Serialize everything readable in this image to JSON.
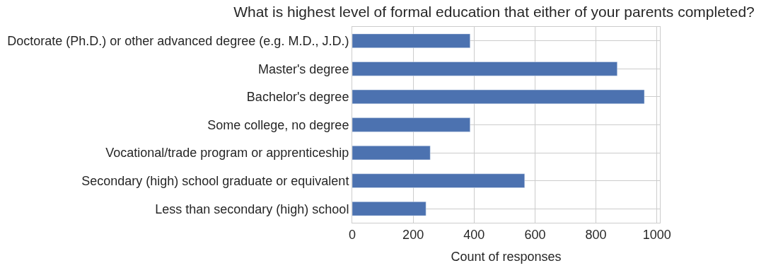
{
  "chart_data": {
    "type": "bar",
    "orientation": "horizontal",
    "title": "What is highest level of formal education that either of your parents completed?",
    "xlabel": "Count of responses",
    "categories": [
      "Doctorate (Ph.D.) or other advanced degree (e.g. M.D., J.D.)",
      "Master's degree",
      "Bachelor's degree",
      "Some college, no degree",
      "Vocational/trade program or apprenticeship",
      "Secondary (high) school graduate or equivalent",
      "Less than secondary (high) school"
    ],
    "values": [
      387,
      870,
      959,
      387,
      256,
      566,
      242
    ],
    "color": "#4c72b0",
    "xlim": [
      0,
      1010
    ],
    "xticks": [
      0,
      200,
      400,
      600,
      800,
      1000
    ],
    "grid": true
  }
}
